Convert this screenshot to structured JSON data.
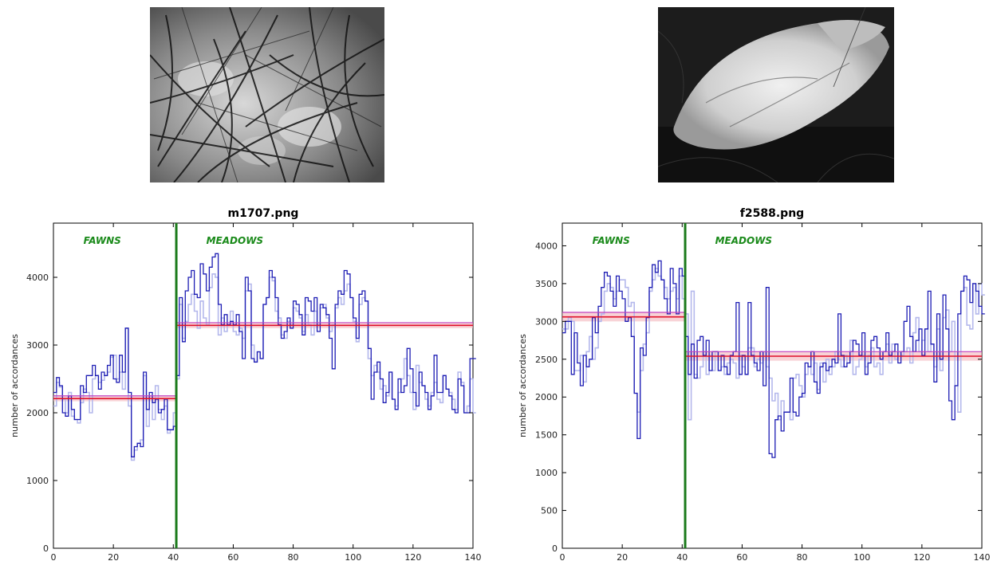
{
  "chart_data": [
    {
      "type": "line",
      "title": "m1707.png",
      "ylabel": "number of accordances",
      "xlabel": "",
      "xlim": [
        0,
        140
      ],
      "ylim": [
        0,
        4800
      ],
      "xticks": [
        0,
        20,
        40,
        60,
        80,
        100,
        120,
        140
      ],
      "yticks": [
        0,
        1000,
        2000,
        3000,
        4000
      ],
      "grid": false,
      "annotations": [
        "FAWNS",
        "MEADOWS"
      ],
      "boundary_x": 41,
      "segment_means": [
        {
          "x": [
            0,
            41
          ],
          "y": 2210,
          "band": [
            2170,
            2250
          ]
        },
        {
          "x": [
            41,
            140
          ],
          "y": 3290,
          "band": [
            3250,
            3330
          ]
        }
      ],
      "series": [
        {
          "color": "#b4b8ec",
          "values": [
            2100,
            2450,
            2380,
            2200,
            2000,
            2300,
            1950,
            1900,
            1850,
            2150,
            2350,
            2300,
            2000,
            2500,
            2550,
            2450,
            2480,
            2550,
            2600,
            2820,
            2850,
            2500,
            2600,
            2350,
            3250,
            2100,
            1300,
            1450,
            1550,
            1600,
            2550,
            1800,
            2250,
            1900,
            2400,
            2050,
            1900,
            2100,
            1700,
            1750,
            2000,
            2500,
            3600,
            3100,
            3350,
            3600,
            3750,
            3500,
            3250,
            3650,
            3400,
            3300,
            3850,
            4050,
            4000,
            3150,
            3400,
            3200,
            3300,
            3500,
            3200,
            3150,
            3250,
            3100,
            3800,
            3900,
            3000,
            2750,
            2900,
            2800,
            3600,
            3700,
            4000,
            3950,
            3500,
            3400,
            3150,
            3100,
            3350,
            3300,
            3550,
            3500,
            3400,
            3200,
            3450,
            3300,
            3150,
            3500,
            3300,
            3550,
            3600,
            3400,
            3200,
            3300,
            3550,
            3700,
            3600,
            3800,
            3900,
            3700,
            3350,
            3050,
            3600,
            3700,
            3650,
            2800,
            2550,
            2700,
            2600,
            2350,
            2400,
            2250,
            2600,
            2200,
            2100,
            2300,
            2500,
            2800,
            2550,
            2300,
            2050,
            2700,
            2450,
            2400,
            2200,
            2100,
            2300,
            2450,
            2200,
            2150,
            2550,
            2350,
            2300,
            2200,
            2050,
            2600,
            2450,
            2000,
            2100,
            2500,
            2000
          ]
        },
        {
          "color": "#1d1db4",
          "values": [
            2300,
            2520,
            2400,
            2000,
            1950,
            2250,
            2050,
            1900,
            1900,
            2400,
            2300,
            2550,
            2550,
            2700,
            2550,
            2350,
            2600,
            2550,
            2700,
            2850,
            2500,
            2450,
            2850,
            2600,
            3250,
            2300,
            1350,
            1500,
            1550,
            1500,
            2600,
            2050,
            2300,
            2150,
            2200,
            2000,
            2050,
            2200,
            1750,
            1750,
            1800,
            2550,
            3700,
            3050,
            3800,
            4000,
            4100,
            3750,
            3700,
            4200,
            4050,
            3800,
            4150,
            4300,
            4350,
            3600,
            3300,
            3450,
            3300,
            3350,
            3300,
            3450,
            3200,
            2800,
            4000,
            3800,
            2800,
            2750,
            2900,
            2800,
            3600,
            3700,
            4100,
            4000,
            3700,
            3300,
            3100,
            3200,
            3400,
            3250,
            3650,
            3600,
            3450,
            3150,
            3700,
            3650,
            3500,
            3700,
            3200,
            3600,
            3550,
            3450,
            3100,
            2650,
            3600,
            3800,
            3750,
            4100,
            4050,
            3700,
            3400,
            3100,
            3750,
            3800,
            3650,
            2950,
            2200,
            2600,
            2750,
            2500,
            2150,
            2300,
            2600,
            2200,
            2050,
            2500,
            2300,
            2400,
            2950,
            2650,
            2300,
            2100,
            2600,
            2400,
            2300,
            2050,
            2250,
            2850,
            2300,
            2300,
            2550,
            2350,
            2250,
            2050,
            2000,
            2500,
            2400,
            2000,
            2000,
            2800,
            2800
          ]
        }
      ]
    },
    {
      "type": "line",
      "title": "f2588.png",
      "ylabel": "number of accordances",
      "xlabel": "",
      "xlim": [
        0,
        140
      ],
      "ylim": [
        0,
        4300
      ],
      "xticks": [
        0,
        20,
        40,
        60,
        80,
        100,
        120,
        140
      ],
      "yticks": [
        0,
        500,
        1000,
        1500,
        2000,
        2500,
        3000,
        3500,
        4000
      ],
      "grid": false,
      "annotations": [
        "FAWNS",
        "MEADOWS"
      ],
      "boundary_x": 41,
      "segment_means": [
        {
          "x": [
            0,
            41
          ],
          "y": 3060,
          "band": [
            3000,
            3120
          ]
        },
        {
          "x": [
            41,
            140
          ],
          "y": 2540,
          "band": [
            2480,
            2600
          ]
        }
      ],
      "series": [
        {
          "color": "#b4b8ec",
          "values": [
            2900,
            2900,
            3050,
            3000,
            2350,
            2350,
            2550,
            2200,
            2600,
            2800,
            2500,
            2650,
            3000,
            3100,
            3400,
            3500,
            3450,
            3300,
            3400,
            3550,
            3550,
            3450,
            3200,
            3250,
            2050,
            1800,
            2350,
            2700,
            2850,
            3400,
            3550,
            3700,
            3600,
            3550,
            3450,
            3300,
            3400,
            3450,
            3300,
            3600,
            3300,
            3100,
            1700,
            3400,
            2300,
            2250,
            2400,
            2600,
            2300,
            2550,
            2350,
            2600,
            2350,
            2400,
            2300,
            2450,
            2500,
            2450,
            2250,
            2550,
            2400,
            2300,
            2650,
            2650,
            2400,
            2500,
            2450,
            2600,
            2400,
            2250,
            1950,
            2050,
            1700,
            1950,
            1800,
            1800,
            1700,
            2250,
            2300,
            2150,
            2000,
            2300,
            2400,
            2300,
            2450,
            2100,
            2450,
            2200,
            2500,
            2300,
            2400,
            2600,
            2500,
            2400,
            2550,
            2450,
            2750,
            2300,
            2400,
            2500,
            2550,
            2400,
            2550,
            2650,
            2400,
            2450,
            2300,
            2600,
            2700,
            2450,
            2700,
            2500,
            2600,
            2550,
            2600,
            2650,
            2450,
            2850,
            3050,
            2600,
            2750,
            2900,
            2600,
            2700,
            2400,
            2900,
            2350,
            3050,
            3150,
            2600,
            3000,
            2150,
            1800,
            3400,
            3450,
            2950,
            2900,
            3500,
            3100,
            3500,
            3350
          ]
        },
        {
          "color": "#1d1db4",
          "values": [
            2850,
            3000,
            3000,
            2300,
            2850,
            2450,
            2150,
            2550,
            2400,
            2500,
            3050,
            2850,
            3200,
            3450,
            3650,
            3600,
            3400,
            3200,
            3600,
            3400,
            3300,
            3000,
            3050,
            2800,
            2050,
            1450,
            2650,
            2550,
            3050,
            3450,
            3750,
            3650,
            3800,
            3550,
            3300,
            3100,
            3700,
            3500,
            3100,
            3700,
            3600,
            2800,
            2300,
            2700,
            2250,
            2750,
            2800,
            2550,
            2750,
            2350,
            2600,
            2600,
            2350,
            2550,
            2400,
            2300,
            2550,
            2600,
            3250,
            2300,
            2550,
            2300,
            3250,
            2550,
            2450,
            2350,
            2600,
            2150,
            3450,
            1250,
            1200,
            1700,
            1750,
            1550,
            1800,
            1800,
            2250,
            1800,
            1750,
            2000,
            2050,
            2450,
            2400,
            2600,
            2200,
            2050,
            2400,
            2450,
            2350,
            2400,
            2500,
            2450,
            3100,
            2550,
            2400,
            2450,
            2600,
            2750,
            2700,
            2550,
            2850,
            2300,
            2450,
            2750,
            2800,
            2650,
            2500,
            2600,
            2850,
            2550,
            2600,
            2700,
            2450,
            2600,
            3000,
            3200,
            2800,
            2600,
            2750,
            2900,
            2550,
            2900,
            3400,
            2700,
            2200,
            3100,
            2500,
            3350,
            2900,
            1950,
            1700,
            2150,
            3100,
            3400,
            3600,
            3550,
            3250,
            3500,
            3400,
            3200,
            3100
          ]
        }
      ]
    }
  ]
}
